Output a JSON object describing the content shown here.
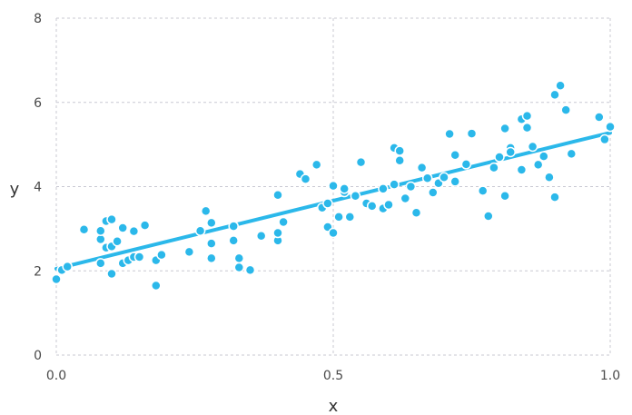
{
  "chart_data": {
    "type": "scatter",
    "title": "",
    "xlabel": "x",
    "ylabel": "y",
    "xlim": [
      0.0,
      1.0
    ],
    "ylim": [
      0,
      8
    ],
    "x_ticks": [
      "0.0",
      "0.5",
      "1.0"
    ],
    "y_ticks": [
      "0",
      "2",
      "4",
      "6",
      "8"
    ],
    "grid": true,
    "legend": "none",
    "point_color": "#2bb8ea",
    "point_stroke": "#ffffff",
    "fit_line": {
      "x": [
        0.0,
        1.0
      ],
      "y": [
        2.05,
        5.28
      ],
      "color": "#2bb8ea"
    },
    "points": [
      [
        0.0,
        1.8
      ],
      [
        0.01,
        2.02
      ],
      [
        0.02,
        2.1
      ],
      [
        0.05,
        2.98
      ],
      [
        0.08,
        2.18
      ],
      [
        0.08,
        2.75
      ],
      [
        0.08,
        2.95
      ],
      [
        0.09,
        3.18
      ],
      [
        0.09,
        2.55
      ],
      [
        0.1,
        1.93
      ],
      [
        0.1,
        3.22
      ],
      [
        0.1,
        2.58
      ],
      [
        0.11,
        2.7
      ],
      [
        0.12,
        3.02
      ],
      [
        0.12,
        2.18
      ],
      [
        0.13,
        2.25
      ],
      [
        0.14,
        2.33
      ],
      [
        0.14,
        2.94
      ],
      [
        0.15,
        2.33
      ],
      [
        0.16,
        3.08
      ],
      [
        0.18,
        2.25
      ],
      [
        0.18,
        1.65
      ],
      [
        0.19,
        2.38
      ],
      [
        0.24,
        2.45
      ],
      [
        0.26,
        2.95
      ],
      [
        0.27,
        3.42
      ],
      [
        0.28,
        2.3
      ],
      [
        0.28,
        3.14
      ],
      [
        0.28,
        2.65
      ],
      [
        0.32,
        2.72
      ],
      [
        0.32,
        3.06
      ],
      [
        0.33,
        2.08
      ],
      [
        0.33,
        2.3
      ],
      [
        0.35,
        2.02
      ],
      [
        0.37,
        2.83
      ],
      [
        0.4,
        2.72
      ],
      [
        0.4,
        2.9
      ],
      [
        0.4,
        3.8
      ],
      [
        0.41,
        3.16
      ],
      [
        0.44,
        4.3
      ],
      [
        0.45,
        4.18
      ],
      [
        0.47,
        4.52
      ],
      [
        0.48,
        3.5
      ],
      [
        0.49,
        3.04
      ],
      [
        0.49,
        3.6
      ],
      [
        0.5,
        2.9
      ],
      [
        0.5,
        4.02
      ],
      [
        0.51,
        3.28
      ],
      [
        0.52,
        3.87
      ],
      [
        0.52,
        3.95
      ],
      [
        0.53,
        3.28
      ],
      [
        0.54,
        3.78
      ],
      [
        0.55,
        4.58
      ],
      [
        0.56,
        3.6
      ],
      [
        0.57,
        3.54
      ],
      [
        0.59,
        3.95
      ],
      [
        0.59,
        3.48
      ],
      [
        0.6,
        3.57
      ],
      [
        0.61,
        4.92
      ],
      [
        0.61,
        4.05
      ],
      [
        0.62,
        4.85
      ],
      [
        0.62,
        4.62
      ],
      [
        0.63,
        3.72
      ],
      [
        0.64,
        4.0
      ],
      [
        0.65,
        3.38
      ],
      [
        0.66,
        4.45
      ],
      [
        0.67,
        4.2
      ],
      [
        0.68,
        3.86
      ],
      [
        0.69,
        4.08
      ],
      [
        0.7,
        4.22
      ],
      [
        0.71,
        5.25
      ],
      [
        0.72,
        4.12
      ],
      [
        0.72,
        4.75
      ],
      [
        0.74,
        4.53
      ],
      [
        0.75,
        5.26
      ],
      [
        0.77,
        3.9
      ],
      [
        0.78,
        3.3
      ],
      [
        0.79,
        4.45
      ],
      [
        0.8,
        4.7
      ],
      [
        0.81,
        5.38
      ],
      [
        0.81,
        3.78
      ],
      [
        0.82,
        4.92
      ],
      [
        0.82,
        4.82
      ],
      [
        0.84,
        4.4
      ],
      [
        0.84,
        5.6
      ],
      [
        0.85,
        5.68
      ],
      [
        0.85,
        5.4
      ],
      [
        0.86,
        4.95
      ],
      [
        0.87,
        4.52
      ],
      [
        0.88,
        4.72
      ],
      [
        0.89,
        4.22
      ],
      [
        0.9,
        6.18
      ],
      [
        0.9,
        3.75
      ],
      [
        0.91,
        6.4
      ],
      [
        0.92,
        5.82
      ],
      [
        0.93,
        4.78
      ],
      [
        0.98,
        5.65
      ],
      [
        0.99,
        5.12
      ],
      [
        1.0,
        5.42
      ]
    ]
  }
}
